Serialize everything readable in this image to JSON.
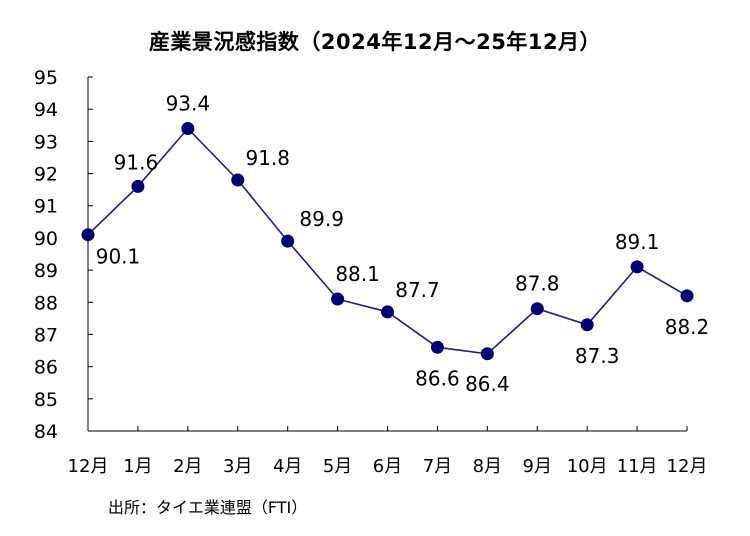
{
  "chart_data": {
    "type": "line",
    "title": "産業景況感指数（2024年12月～25年12月）",
    "source": "出所：タイエ業連盟（FTI）",
    "categories": [
      "12月",
      "1月",
      "2月",
      "3月",
      "4月",
      "5月",
      "6月",
      "7月",
      "8月",
      "9月",
      "10月",
      "11月",
      "12月"
    ],
    "series": [
      {
        "values": [
          90.1,
          91.6,
          93.4,
          91.8,
          89.9,
          88.1,
          87.7,
          86.6,
          86.4,
          87.8,
          87.3,
          89.1,
          88.2
        ]
      }
    ],
    "data_labels": [
      "90.1",
      "91.6",
      "93.4",
      "91.8",
      "89.9",
      "88.1",
      "87.7",
      "86.6",
      "86.4",
      "87.8",
      "87.3",
      "89.1",
      "88.2"
    ],
    "ylim": [
      84,
      95
    ],
    "yticks": [
      "84",
      "85",
      "86",
      "87",
      "88",
      "89",
      "90",
      "91",
      "92",
      "93",
      "94",
      "95"
    ],
    "grid": false,
    "legend": "none",
    "line_color": "#1f1f7a",
    "marker_color": "#00006e"
  }
}
